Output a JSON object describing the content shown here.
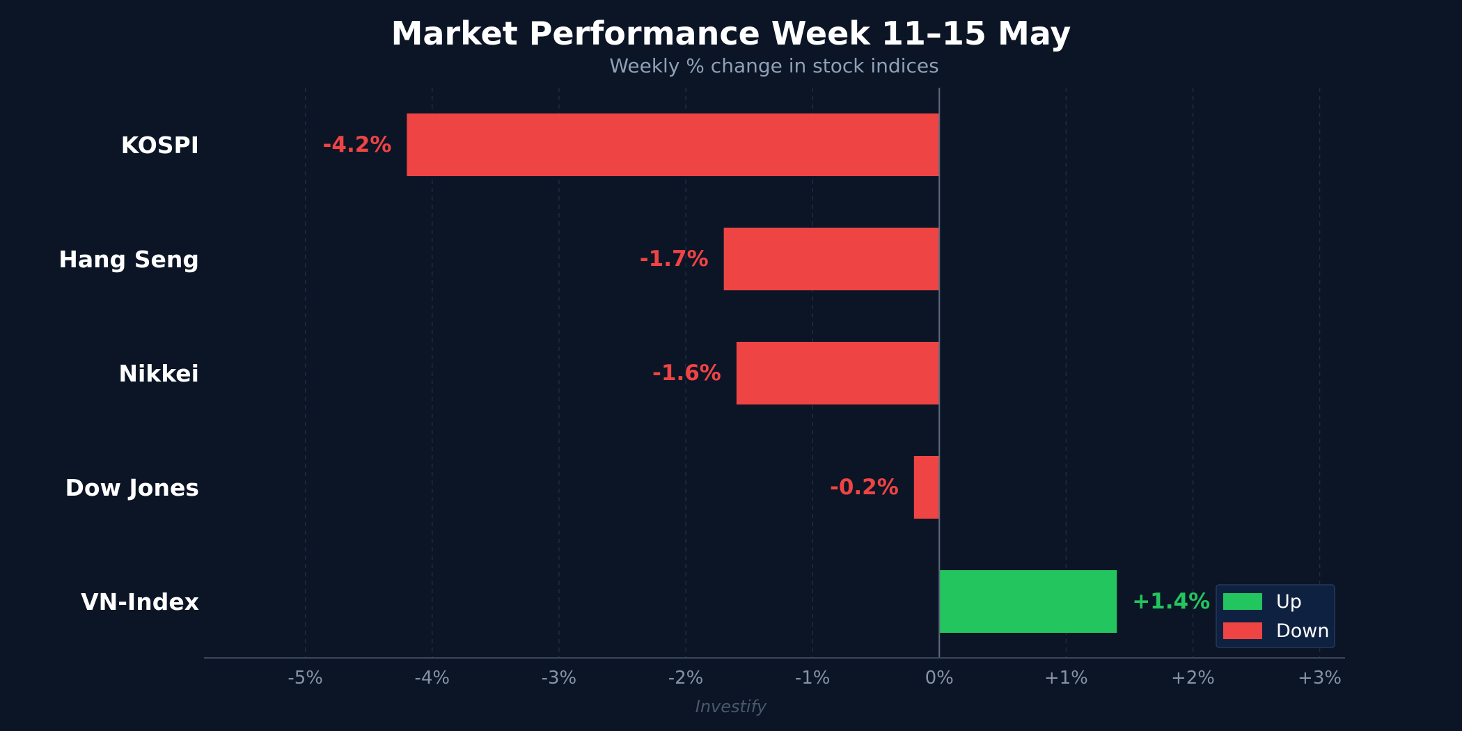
{
  "chart_data": {
    "type": "bar",
    "orientation": "horizontal",
    "title": "Market Performance Week 11–15 May",
    "subtitle": "Weekly % change in stock indices",
    "categories": [
      "KOSPI",
      "Hang Seng",
      "Nikkei",
      "Dow Jones",
      "VN-Index"
    ],
    "values": [
      -4.2,
      -1.7,
      -1.6,
      -0.2,
      1.4
    ],
    "value_labels": [
      "-4.2%",
      "-1.7%",
      "-1.6%",
      "-0.2%",
      "+1.4%"
    ],
    "xlim": [
      -5.8,
      3.2
    ],
    "xticks": [
      -5,
      -4,
      -3,
      -2,
      -1,
      0,
      1,
      2,
      3
    ],
    "xtick_labels": [
      "-5%",
      "-4%",
      "-3%",
      "-2%",
      "-1%",
      "0%",
      "+1%",
      "+2%",
      "+3%"
    ],
    "xlabel": "",
    "ylabel": "",
    "grid": "vertical dashed",
    "legend": {
      "placement": "bottom-right",
      "entries": [
        {
          "label": "Up",
          "color": "#22c55e"
        },
        {
          "label": "Down",
          "color": "#ef4444"
        }
      ]
    },
    "colors": {
      "up": "#22c55e",
      "down": "#ef4444",
      "background": "#0b1526"
    },
    "source": "Investify"
  }
}
